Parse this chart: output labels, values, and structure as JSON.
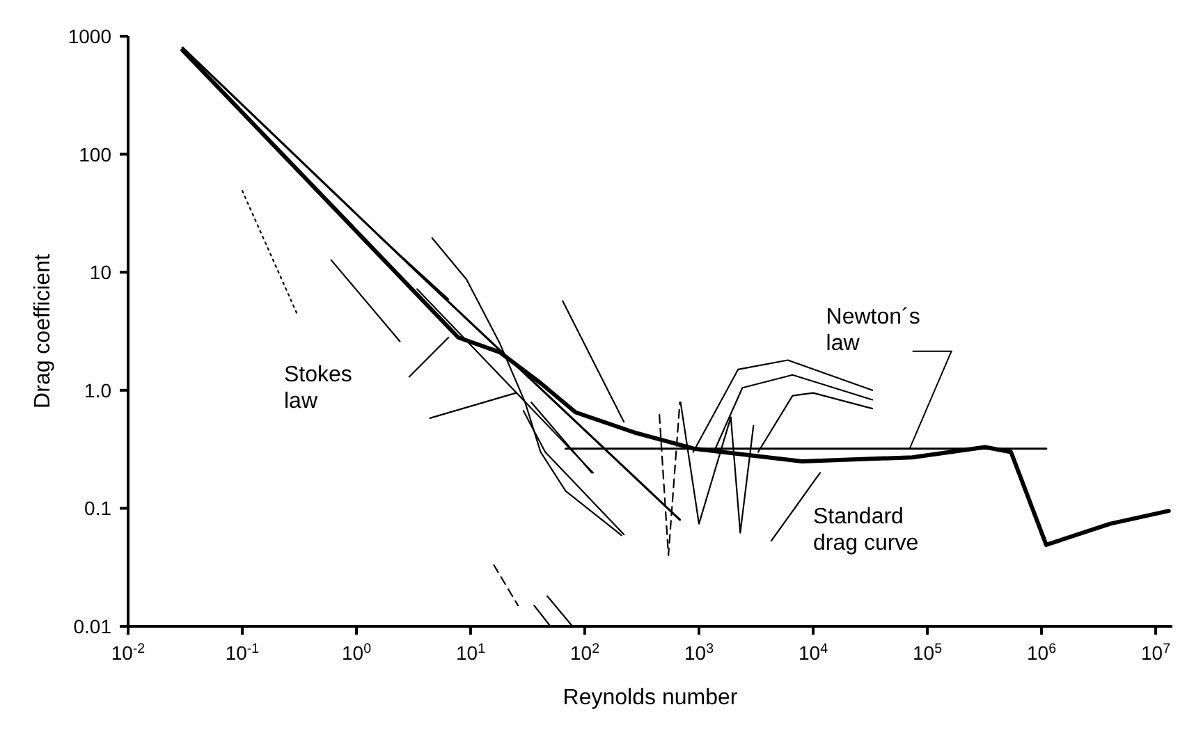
{
  "chart_data": {
    "type": "line",
    "xlabel": "Reynolds number",
    "ylabel": "Drag coefficient",
    "log": "xy",
    "marker": "none",
    "xlim": [
      0.01,
      14000000
    ],
    "xticks": [
      {
        "value": 0.01,
        "label": "10$^{-2}$"
      },
      {
        "value": 0.1,
        "label": "10$^{-1}$"
      },
      {
        "value": 1,
        "label": "10$^{0}$"
      },
      {
        "value": 10,
        "label": "10$^{1}$"
      },
      {
        "value": 100,
        "label": "10$^{2}$"
      },
      {
        "value": 1000,
        "label": "10$^{3}$"
      },
      {
        "value": 10000,
        "label": "10$^{4}$"
      },
      {
        "value": 100000,
        "label": "10$^{5}$"
      },
      {
        "value": 1000000,
        "label": "10$^{6}$"
      },
      {
        "value": 10000000,
        "label": "10$^{7}$"
      }
    ],
    "ylim": [
      0.01,
      1000
    ],
    "yticks": [
      {
        "value": 0.01,
        "label": "0.01"
      },
      {
        "value": 0.1,
        "label": "0.1"
      },
      {
        "value": 1,
        "label": "1.0"
      },
      {
        "value": 10,
        "label": "10"
      },
      {
        "value": 100,
        "label": "100"
      },
      {
        "value": 1000,
        "label": "1000"
      }
    ],
    "series": [
      {
        "color": "#000000",
        "x": [
          0.03,
          7.8,
          18,
          41,
          83,
          270,
          900,
          8000,
          74000,
          320000,
          540000,
          1100000,
          4000000,
          13000000
        ],
        "values": [
          760,
          2.8,
          2.1,
          1.15,
          0.65,
          0.44,
          0.32,
          0.25,
          0.27,
          0.33,
          0.3,
          0.049,
          0.074,
          0.095
        ]
      },
      {
        "color": "#000000",
        "x": [
          0.03,
          3.4,
          680
        ],
        "values": [
          800,
          10,
          0.08
        ]
      },
      {
        "color": "#000000",
        "x": [
          68,
          1100000
        ],
        "values": [
          0.32,
          0.32
        ]
      },
      {
        "color": "#000000",
        "x": [
          3.4,
          118
        ],
        "values": [
          7.2,
          0.2
        ]
      },
      {
        "color": "#000000",
        "line_style": "dotted",
        "x": [
          0.1,
          0.3
        ],
        "values": [
          49,
          4.5
        ]
      },
      {
        "color": "#000000",
        "x": [
          0.6,
          2.4
        ],
        "values": [
          12.7,
          2.6
        ]
      },
      {
        "color": "#000000",
        "x": [
          1.6,
          6.4
        ],
        "values": [
          20,
          5.9
        ]
      },
      {
        "color": "#000000",
        "x": [
          4.6,
          9.2,
          18,
          30,
          41,
          68,
          210
        ],
        "values": [
          19.5,
          8.7,
          2.5,
          0.79,
          0.3,
          0.14,
          0.059
        ]
      },
      {
        "color": "#000000",
        "x": [
          2.9,
          6.4
        ],
        "values": [
          1.3,
          2.8
        ]
      },
      {
        "color": "#000000",
        "x": [
          4.4,
          25
        ],
        "values": [
          0.58,
          0.95
        ]
      },
      {
        "color": "#000000",
        "x": [
          64,
          220
        ],
        "values": [
          5.7,
          0.54
        ]
      },
      {
        "color": "#000000",
        "line_style": "dashed",
        "x": [
          450,
          540,
          680
        ],
        "values": [
          0.62,
          0.04,
          0.79
        ]
      },
      {
        "color": "#000000",
        "x": [
          690,
          1000,
          1900,
          2300,
          3000
        ],
        "values": [
          0.79,
          0.074,
          0.59,
          0.062,
          0.5
        ]
      },
      {
        "color": "#000000",
        "x": [
          890,
          2200,
          6000,
          33000
        ],
        "values": [
          0.3,
          1.5,
          1.8,
          1.0
        ]
      },
      {
        "color": "#000000",
        "x": [
          1350,
          2400,
          6600,
          33000
        ],
        "values": [
          0.3,
          1.05,
          1.35,
          0.83
        ]
      },
      {
        "color": "#000000",
        "x": [
          3300,
          6600,
          10000,
          33000
        ],
        "values": [
          0.3,
          0.9,
          0.95,
          0.7
        ]
      },
      {
        "color": "#000000",
        "x": [
          11500,
          4300
        ],
        "values": [
          0.2,
          0.053
        ]
      },
      {
        "color": "#000000",
        "line_style": "dashed",
        "x": [
          16,
          26
        ],
        "values": [
          0.033,
          0.015
        ]
      },
      {
        "color": "#000000",
        "x": [
          36,
          50
        ],
        "values": [
          0.015,
          0.01
        ]
      },
      {
        "color": "#000000",
        "x": [
          47,
          78
        ],
        "values": [
          0.018,
          0.01
        ]
      },
      {
        "color": "#000000",
        "x": [
          29,
          45,
          220
        ],
        "values": [
          0.67,
          0.3,
          0.06
        ]
      },
      {
        "color": "#000000",
        "x": [
          34,
          115
        ],
        "values": [
          0.79,
          0.2
        ]
      }
    ],
    "annotations": [
      "Stokes law",
      {
        "text": "Newton´s law",
        "x": 70000,
        "y": 0.32
      },
      "Standard drag curve"
    ]
  }
}
